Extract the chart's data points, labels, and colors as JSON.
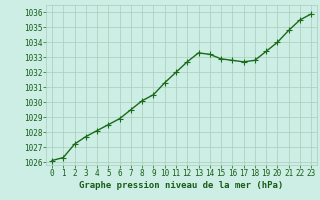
{
  "x": [
    0,
    1,
    2,
    3,
    4,
    5,
    6,
    7,
    8,
    9,
    10,
    11,
    12,
    13,
    14,
    15,
    16,
    17,
    18,
    19,
    20,
    21,
    22,
    23
  ],
  "y": [
    1026.1,
    1026.3,
    1027.2,
    1027.7,
    1028.1,
    1028.5,
    1028.9,
    1029.5,
    1030.1,
    1030.5,
    1031.3,
    1032.0,
    1032.7,
    1033.3,
    1033.2,
    1032.9,
    1032.8,
    1032.7,
    1032.8,
    1033.4,
    1034.0,
    1034.8,
    1035.5,
    1035.9
  ],
  "line_color": "#1a6b1a",
  "marker_color": "#1a6b1a",
  "bg_color": "#cceee4",
  "grid_color": "#aaccbb",
  "axis_label_color": "#1a5c1a",
  "tick_label_color": "#1a5c1a",
  "xlabel": "Graphe pression niveau de la mer (hPa)",
  "ylim": [
    1025.8,
    1036.5
  ],
  "xlim": [
    -0.5,
    23.5
  ],
  "yticks": [
    1026,
    1027,
    1028,
    1029,
    1030,
    1031,
    1032,
    1033,
    1034,
    1035,
    1036
  ],
  "xticks": [
    0,
    1,
    2,
    3,
    4,
    5,
    6,
    7,
    8,
    9,
    10,
    11,
    12,
    13,
    14,
    15,
    16,
    17,
    18,
    19,
    20,
    21,
    22,
    23
  ],
  "marker_size": 2.5,
  "line_width": 1.0,
  "font_size_tick": 5.5,
  "font_size_label": 6.5
}
